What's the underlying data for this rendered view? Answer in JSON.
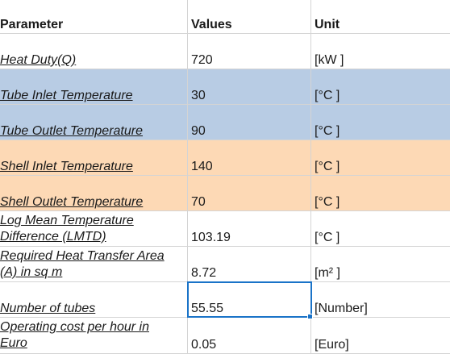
{
  "headers": {
    "parameter": "Parameter",
    "values": "Values",
    "unit": "Unit"
  },
  "rows": [
    {
      "parameter": "Heat Duty(Q)",
      "value": "720",
      "unit": "[kW ]"
    },
    {
      "parameter": "Tube Inlet Temperature",
      "value": "30",
      "unit": "[°C ]"
    },
    {
      "parameter": "Tube Outlet Temperature",
      "value": "90",
      "unit": "[°C ]"
    },
    {
      "parameter": "Shell Inlet Temperature",
      "value": "140",
      "unit": "[°C ]"
    },
    {
      "parameter": "Shell Outlet Temperature",
      "value": "70",
      "unit": "[°C ]"
    },
    {
      "parameter_line1": "Log Mean Temperature",
      "parameter_line2": "Difference (LMTD)",
      "value": "103.19",
      "unit": "[°C ]"
    },
    {
      "parameter_line1": "Required Heat Transfer Area",
      "parameter_line2": "(A) in sq m",
      "value": "8.72",
      "unit": "[m² ]"
    },
    {
      "parameter": "Number of tubes",
      "value": "55.55",
      "unit": "[Number]"
    },
    {
      "parameter_line1": "Operating cost per hour in",
      "parameter_line2": "Euro",
      "value": "0.05",
      "unit": "[Euro]"
    }
  ],
  "colors": {
    "blue_band": "#b8cce4",
    "orange_band": "#fdd9b5",
    "selection": "#1a73c8"
  }
}
